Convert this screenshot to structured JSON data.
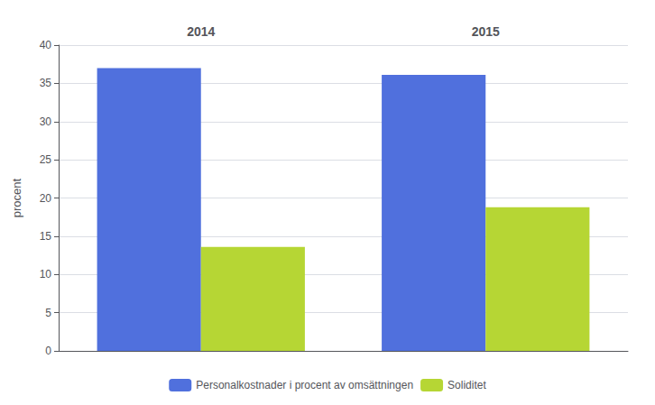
{
  "chart_data": {
    "type": "bar",
    "categories": [
      "2014",
      "2015"
    ],
    "series": [
      {
        "name": "Personalkostnader i procent av omsättningen",
        "values": [
          37.0,
          36.1
        ]
      },
      {
        "name": "Soliditet",
        "values": [
          13.6,
          18.8
        ]
      }
    ],
    "ylabel": "procent",
    "ylim": [
      0,
      40
    ],
    "yticks": [
      0,
      5,
      10,
      15,
      20,
      25,
      30,
      35,
      40
    ],
    "grid": true,
    "legend": "bottom"
  }
}
